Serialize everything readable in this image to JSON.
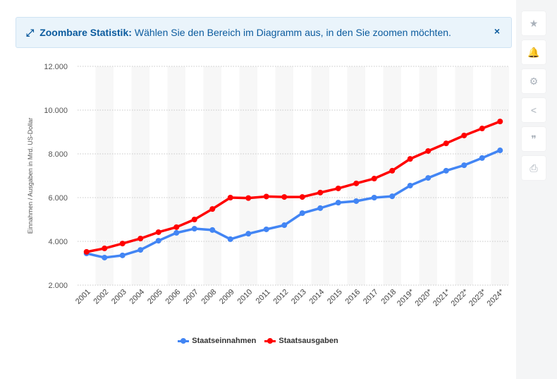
{
  "banner": {
    "title": "Zoombare Statistik:",
    "text": "Wählen Sie den Bereich im Diagramm aus, in den Sie zoomen möchten.",
    "icon": "expand-icon",
    "close": "×"
  },
  "sidebar": [
    {
      "icon": "star-icon",
      "glyph": "★"
    },
    {
      "icon": "bell-icon",
      "glyph": "🔔"
    },
    {
      "icon": "gear-icon",
      "glyph": "⚙"
    },
    {
      "icon": "share-icon",
      "glyph": "<"
    },
    {
      "icon": "quote-icon",
      "glyph": "❞"
    },
    {
      "icon": "print-icon",
      "glyph": "⎙"
    }
  ],
  "chart_data": {
    "type": "line",
    "ylabel": "Einnahmen / Ausgaben in Mrd. US-Dollar",
    "ylim": [
      2000,
      12000
    ],
    "yticks": [
      "2.000",
      "4.000",
      "6.000",
      "8.000",
      "10.000",
      "12.000"
    ],
    "categories": [
      "2001",
      "2002",
      "2003",
      "2004",
      "2005",
      "2006",
      "2007",
      "2008",
      "2009",
      "2010",
      "2011",
      "2012",
      "2013",
      "2014",
      "2015",
      "2016",
      "2017",
      "2018",
      "2019*",
      "2020*",
      "2021*",
      "2022*",
      "2023*",
      "2024*"
    ],
    "grid": "horizontal dotted",
    "legend": "bottom",
    "series": [
      {
        "name": "Staatseinnahmen",
        "color": "#4285f4",
        "values": [
          3450,
          3260,
          3360,
          3610,
          4030,
          4390,
          4580,
          4520,
          4100,
          4350,
          4550,
          4740,
          5290,
          5520,
          5770,
          5840,
          6000,
          6060,
          6550,
          6900,
          7230,
          7480,
          7810,
          8160
        ]
      },
      {
        "name": "Staatsausgaben",
        "color": "#ff0000",
        "values": [
          3520,
          3680,
          3900,
          4130,
          4420,
          4650,
          5000,
          5480,
          6000,
          5980,
          6050,
          6030,
          6030,
          6230,
          6420,
          6650,
          6870,
          7230,
          7770,
          8130,
          8480,
          8840,
          9160,
          9480
        ]
      }
    ]
  }
}
